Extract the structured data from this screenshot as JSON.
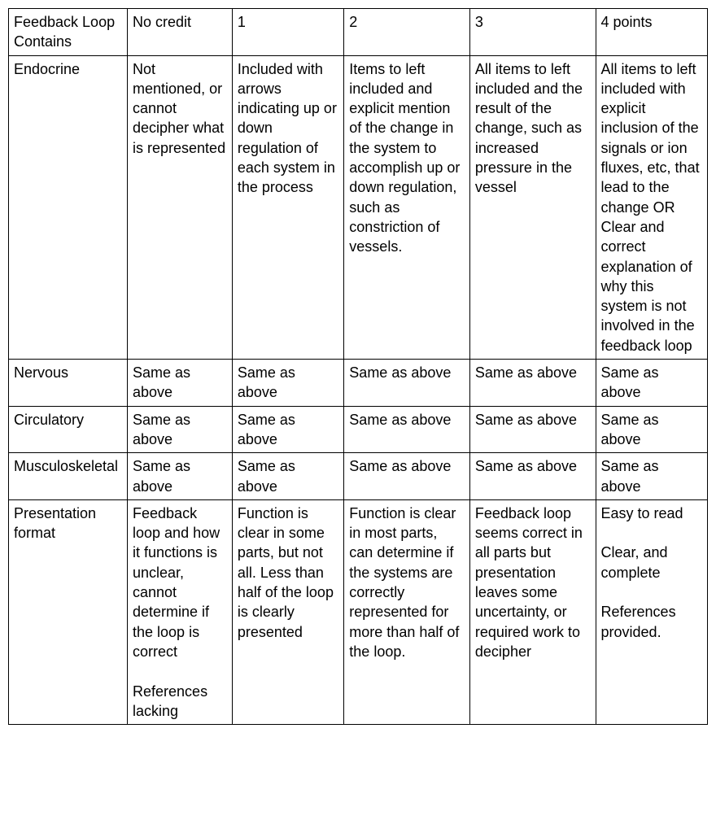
{
  "table": {
    "border_color": "#000000",
    "background_color": "#ffffff",
    "font_family": "Arial",
    "font_size_pt": 13,
    "columns": [
      {
        "width_pct": 17
      },
      {
        "width_pct": 15
      },
      {
        "width_pct": 16
      },
      {
        "width_pct": 18
      },
      {
        "width_pct": 18
      },
      {
        "width_pct": 16
      }
    ],
    "header": {
      "c0": "Feedback Loop Contains",
      "c1": "No credit",
      "c2": "1",
      "c3": "2",
      "c4": "3",
      "c5": "4 points"
    },
    "rows": {
      "endocrine": {
        "label": "Endocrine",
        "c1": "Not mentioned, or cannot decipher what is represented",
        "c2": "Included with arrows indicating up or down regulation of each system in the process",
        "c3": "Items to left included and explicit mention of the change in the system to accomplish up or down regulation, such as constriction of vessels.",
        "c4": "All items to left included and the result of the change, such as increased pressure in the vessel",
        "c5": "All items to left included with explicit inclusion of the signals or ion fluxes, etc, that lead to the change OR\nClear and correct explanation of why this system is not involved in the feedback loop"
      },
      "nervous": {
        "label": "Nervous",
        "c1": "Same as above",
        "c2": "Same as above",
        "c3": "Same as above",
        "c4": "Same as above",
        "c5": "Same as above"
      },
      "circulatory": {
        "label": "Circulatory",
        "c1": "Same as above",
        "c2": "Same as above",
        "c3": "Same as above",
        "c4": "Same as above",
        "c5": "Same as above"
      },
      "musculoskeletal": {
        "label": "Musculoskeletal",
        "c1": "Same as above",
        "c2": "Same as above",
        "c3": "Same as above",
        "c4": "Same as above",
        "c5": "Same as above"
      },
      "presentation": {
        "label": "Presentation format",
        "c1_p1": "Feedback loop and how it functions is unclear, cannot determine if the loop is correct",
        "c1_p2": "References lacking",
        "c2": "Function is clear in some parts, but not all. Less than half of the loop is clearly presented",
        "c3": "Function is clear in most parts, can determine if the systems are correctly represented for more than half of the loop.",
        "c4": "Feedback loop seems correct in all parts but presentation leaves some uncertainty, or required work to decipher",
        "c5_p1": "Easy to read",
        "c5_p2": "Clear, and complete",
        "c5_p3": "References provided."
      }
    }
  }
}
